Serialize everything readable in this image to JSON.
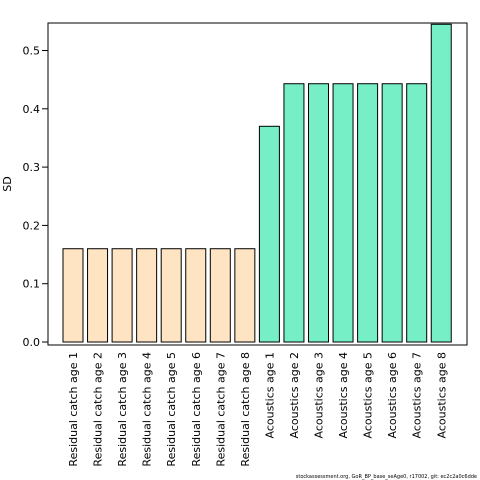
{
  "chart_data": {
    "type": "bar",
    "title": "",
    "xlabel": "",
    "ylabel": "SD",
    "categories": [
      "Residual catch age 1",
      "Residual catch age 2",
      "Residual catch age 3",
      "Residual catch age 4",
      "Residual catch age 5",
      "Residual catch age 6",
      "Residual catch age 7",
      "Residual catch age 8",
      "Acoustics age 1",
      "Acoustics age 2",
      "Acoustics age 3",
      "Acoustics age 4",
      "Acoustics age 5",
      "Acoustics age 6",
      "Acoustics age 7",
      "Acoustics age 8"
    ],
    "values": [
      0.16,
      0.16,
      0.16,
      0.16,
      0.16,
      0.16,
      0.16,
      0.16,
      0.37,
      0.443,
      0.443,
      0.443,
      0.443,
      0.443,
      0.443,
      0.545
    ],
    "colors": [
      "#FFE4C4",
      "#FFE4C4",
      "#FFE4C4",
      "#FFE4C4",
      "#FFE4C4",
      "#FFE4C4",
      "#FFE4C4",
      "#FFE4C4",
      "#76EEC6",
      "#76EEC6",
      "#76EEC6",
      "#76EEC6",
      "#76EEC6",
      "#76EEC6",
      "#76EEC6",
      "#76EEC6"
    ],
    "yticks": [
      0.0,
      0.1,
      0.2,
      0.3,
      0.4,
      0.5
    ],
    "ytick_labels": [
      "0.0",
      "0.1",
      "0.2",
      "0.3",
      "0.4",
      "0.5"
    ],
    "ylim": [
      0,
      0.545
    ],
    "grid": false,
    "legend": "none"
  },
  "footer": "stockassessment.org, GoR_BP_base_seAge0, r17002, git: ec2c2a0c6dde"
}
